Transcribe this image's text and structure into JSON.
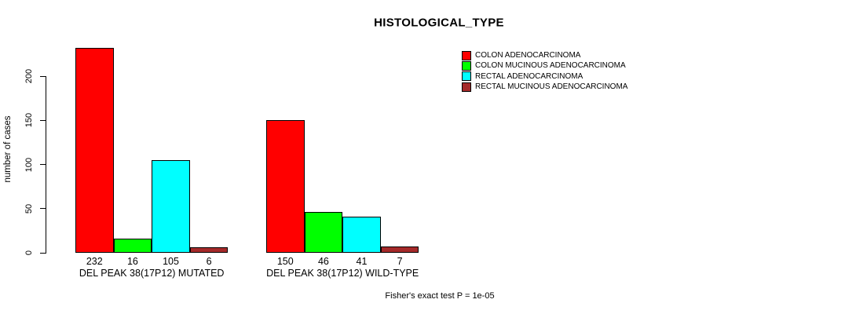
{
  "chart_data": {
    "type": "bar",
    "title": "HISTOLOGICAL_TYPE",
    "ylabel": "number of cases",
    "xlabel": "",
    "ylim": [
      0,
      200
    ],
    "yticks": [
      0,
      50,
      100,
      150,
      200
    ],
    "grid": false,
    "legend_position": "top-right",
    "categories": [
      "DEL PEAK 38(17P12) MUTATED",
      "DEL PEAK 38(17P12) WILD-TYPE"
    ],
    "series": [
      {
        "name": "COLON ADENOCARCINOMA",
        "color": "#FF0000",
        "values": [
          232,
          150
        ]
      },
      {
        "name": "COLON MUCINOUS ADENOCARCINOMA",
        "color": "#00FF00",
        "values": [
          16,
          46
        ]
      },
      {
        "name": "RECTAL ADENOCARCINOMA",
        "color": "#00FFFF",
        "values": [
          105,
          41
        ]
      },
      {
        "name": "RECTAL MUCINOUS ADENOCARCINOMA",
        "color": "#A52A2A",
        "values": [
          6,
          7
        ]
      }
    ],
    "bar_value_labels": [
      [
        232,
        16,
        105,
        6
      ],
      [
        150,
        46,
        41,
        7
      ]
    ],
    "annotation": "Fisher's exact test P = 1e-05"
  }
}
